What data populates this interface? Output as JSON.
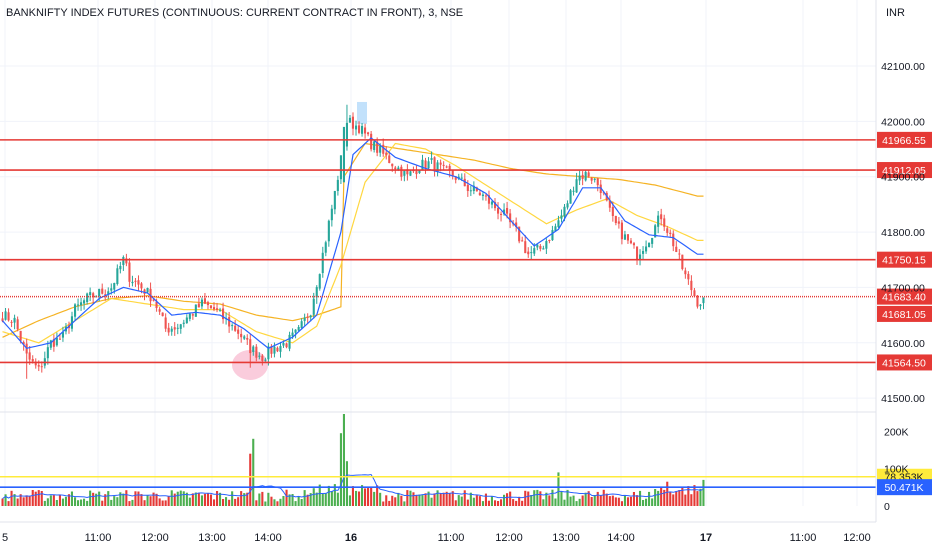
{
  "title": "BANKNIFTY INDEX FUTURES (CONTINUOUS: CURRENT CONTRACT IN FRONT), 3, NSE",
  "currency": "INR",
  "colors": {
    "up": "#26a69a",
    "down": "#ef5350",
    "hline": "#e53935",
    "ma_fast": "#2962ff",
    "ma_slow": "#f5b324",
    "ma_mid": "#ffd740",
    "vol_up": "#4caf50",
    "vol_down": "#e53935",
    "vol_ma": "#2962ff",
    "vol_level_yellow": "#ffeb3b",
    "vol_level_blue": "#2962ff"
  },
  "chart_data": [
    {
      "type": "candlestick",
      "ylim": [
        41475,
        42165
      ],
      "y_ticks": [
        "42100.00",
        "42000.00",
        "41900.00",
        "41800.00",
        "41700.00",
        "41600.00",
        "41500.00"
      ],
      "y_tick_values": [
        42100,
        42000,
        41900,
        41800,
        41700,
        41600,
        41500
      ],
      "x_ticks": [
        "5",
        "11:00",
        "12:00",
        "13:00",
        "14:00",
        "16",
        "11:00",
        "12:00",
        "13:00",
        "14:00",
        "17",
        "11:00",
        "12:00"
      ],
      "x_tick_bold": [
        false,
        false,
        false,
        false,
        false,
        true,
        false,
        false,
        false,
        false,
        true,
        false,
        false
      ],
      "horizontal_levels": [
        {
          "value": 41966.55,
          "label": "41966.55"
        },
        {
          "value": 41912.05,
          "label": "41912.05"
        },
        {
          "value": 41750.15,
          "label": "41750.15"
        },
        {
          "value": 41683.4,
          "label": "41683.40",
          "dotted": true
        },
        {
          "value": 41681.05,
          "label": "41681.05"
        },
        {
          "value": 41564.5,
          "label": "41564.50"
        }
      ],
      "candle_close_anchors": [
        [
          0,
          41650
        ],
        [
          4,
          41640
        ],
        [
          8,
          41575
        ],
        [
          12,
          41550
        ],
        [
          16,
          41600
        ],
        [
          20,
          41610
        ],
        [
          24,
          41660
        ],
        [
          28,
          41680
        ],
        [
          32,
          41690
        ],
        [
          36,
          41700
        ],
        [
          40,
          41750
        ],
        [
          42,
          41720
        ],
        [
          46,
          41700
        ],
        [
          50,
          41680
        ],
        [
          54,
          41625
        ],
        [
          58,
          41630
        ],
        [
          62,
          41650
        ],
        [
          66,
          41670
        ],
        [
          70,
          41660
        ],
        [
          74,
          41640
        ],
        [
          78,
          41620
        ],
        [
          82,
          41590
        ],
        [
          86,
          41575
        ],
        [
          90,
          41590
        ],
        [
          94,
          41600
        ],
        [
          98,
          41620
        ],
        [
          102,
          41660
        ],
        [
          106,
          41760
        ],
        [
          110,
          41870
        ],
        [
          113,
          41960
        ],
        [
          114,
          42000
        ],
        [
          118,
          41990
        ],
        [
          122,
          41960
        ],
        [
          126,
          41940
        ],
        [
          130,
          41920
        ],
        [
          134,
          41900
        ],
        [
          138,
          41920
        ],
        [
          142,
          41925
        ],
        [
          146,
          41910
        ],
        [
          150,
          41900
        ],
        [
          154,
          41880
        ],
        [
          158,
          41870
        ],
        [
          162,
          41850
        ],
        [
          166,
          41830
        ],
        [
          170,
          41800
        ],
        [
          174,
          41760
        ],
        [
          178,
          41770
        ],
        [
          182,
          41800
        ],
        [
          186,
          41840
        ],
        [
          190,
          41900
        ],
        [
          194,
          41905
        ],
        [
          198,
          41880
        ],
        [
          202,
          41820
        ],
        [
          206,
          41790
        ],
        [
          210,
          41760
        ],
        [
          214,
          41790
        ],
        [
          218,
          41830
        ],
        [
          222,
          41780
        ],
        [
          226,
          41720
        ],
        [
          230,
          41675
        ]
      ],
      "ma_fast_anchors": [
        [
          0,
          41640
        ],
        [
          8,
          41590
        ],
        [
          16,
          41600
        ],
        [
          24,
          41640
        ],
        [
          32,
          41680
        ],
        [
          40,
          41700
        ],
        [
          48,
          41690
        ],
        [
          56,
          41650
        ],
        [
          64,
          41655
        ],
        [
          72,
          41650
        ],
        [
          80,
          41625
        ],
        [
          88,
          41590
        ],
        [
          96,
          41610
        ],
        [
          104,
          41650
        ],
        [
          112,
          41800
        ],
        [
          116,
          41940
        ],
        [
          122,
          41970
        ],
        [
          130,
          41935
        ],
        [
          140,
          41915
        ],
        [
          150,
          41900
        ],
        [
          160,
          41870
        ],
        [
          170,
          41810
        ],
        [
          176,
          41775
        ],
        [
          184,
          41805
        ],
        [
          192,
          41880
        ],
        [
          198,
          41880
        ],
        [
          206,
          41820
        ],
        [
          214,
          41795
        ],
        [
          222,
          41790
        ],
        [
          230,
          41760
        ]
      ],
      "ma_slow_anchors": [
        [
          0,
          41610
        ],
        [
          12,
          41640
        ],
        [
          24,
          41665
        ],
        [
          36,
          41680
        ],
        [
          48,
          41685
        ],
        [
          60,
          41675
        ],
        [
          72,
          41670
        ],
        [
          84,
          41650
        ],
        [
          96,
          41640
        ],
        [
          104,
          41650
        ],
        [
          112,
          41665
        ],
        [
          113,
          41900
        ],
        [
          120,
          41960
        ],
        [
          132,
          41950
        ],
        [
          144,
          41940
        ],
        [
          156,
          41930
        ],
        [
          168,
          41915
        ],
        [
          180,
          41905
        ],
        [
          192,
          41900
        ],
        [
          204,
          41895
        ],
        [
          216,
          41885
        ],
        [
          230,
          41865
        ]
      ],
      "ma_mid_anchors": [
        [
          0,
          41620
        ],
        [
          12,
          41600
        ],
        [
          24,
          41640
        ],
        [
          36,
          41680
        ],
        [
          48,
          41670
        ],
        [
          60,
          41660
        ],
        [
          72,
          41660
        ],
        [
          84,
          41620
        ],
        [
          96,
          41600
        ],
        [
          104,
          41630
        ],
        [
          112,
          41740
        ],
        [
          120,
          41890
        ],
        [
          130,
          41960
        ],
        [
          140,
          41950
        ],
        [
          150,
          41920
        ],
        [
          160,
          41885
        ],
        [
          170,
          41850
        ],
        [
          180,
          41815
        ],
        [
          190,
          41840
        ],
        [
          200,
          41860
        ],
        [
          210,
          41830
        ],
        [
          220,
          41810
        ],
        [
          230,
          41785
        ]
      ]
    },
    {
      "type": "bar",
      "name": "volume",
      "ylim": [
        0,
        225000
      ],
      "y_ticks": [
        "200K",
        "100K",
        "0"
      ],
      "y_tick_values": [
        200000,
        100000,
        0
      ],
      "levels": [
        {
          "value": 78353,
          "label": "78.353K",
          "color_key": "vol_level_yellow"
        },
        {
          "value": 50471,
          "label": "50.471K",
          "color_key": "vol_level_blue"
        }
      ],
      "spikes": [
        [
          82,
          140000
        ],
        [
          83,
          180000
        ],
        [
          112,
          195000
        ],
        [
          113,
          250000
        ],
        [
          114,
          120000
        ],
        [
          184,
          90000
        ],
        [
          220,
          65000
        ],
        [
          232,
          70000
        ]
      ]
    }
  ]
}
